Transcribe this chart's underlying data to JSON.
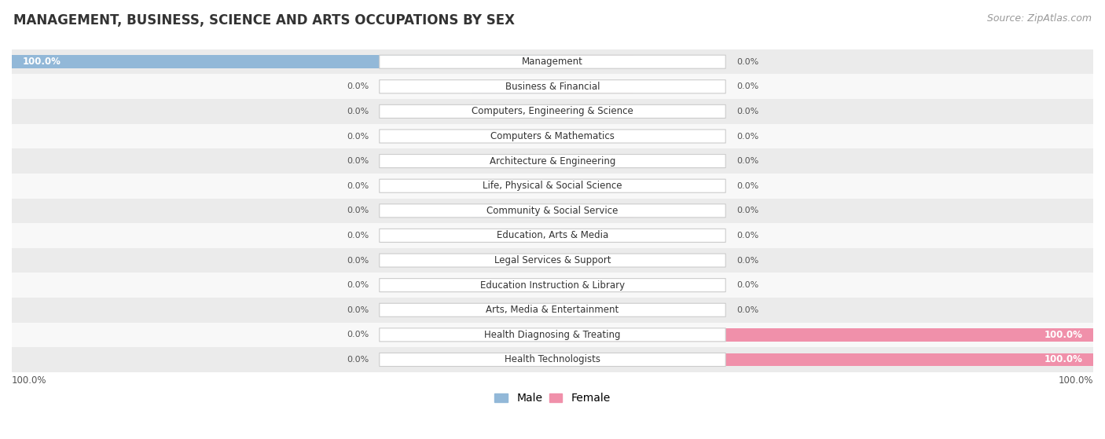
{
  "title": "MANAGEMENT, BUSINESS, SCIENCE AND ARTS OCCUPATIONS BY SEX",
  "source": "Source: ZipAtlas.com",
  "categories": [
    "Management",
    "Business & Financial",
    "Computers, Engineering & Science",
    "Computers & Mathematics",
    "Architecture & Engineering",
    "Life, Physical & Social Science",
    "Community & Social Service",
    "Education, Arts & Media",
    "Legal Services & Support",
    "Education Instruction & Library",
    "Arts, Media & Entertainment",
    "Health Diagnosing & Treating",
    "Health Technologists"
  ],
  "male_values": [
    100.0,
    0.0,
    0.0,
    0.0,
    0.0,
    0.0,
    0.0,
    0.0,
    0.0,
    0.0,
    0.0,
    0.0,
    0.0
  ],
  "female_values": [
    0.0,
    0.0,
    0.0,
    0.0,
    0.0,
    0.0,
    0.0,
    0.0,
    0.0,
    0.0,
    0.0,
    100.0,
    100.0
  ],
  "male_color": "#92b8d8",
  "female_color": "#f090aa",
  "male_stub_color": "#b8d4ea",
  "female_stub_color": "#f4b8ca",
  "bg_color": "#ffffff",
  "row_odd_color": "#ebebeb",
  "row_even_color": "#f8f8f8",
  "title_fontsize": 12,
  "source_fontsize": 9,
  "bar_fontsize": 8.5,
  "legend_fontsize": 10,
  "stub_size": 15,
  "bar_height": 0.52
}
